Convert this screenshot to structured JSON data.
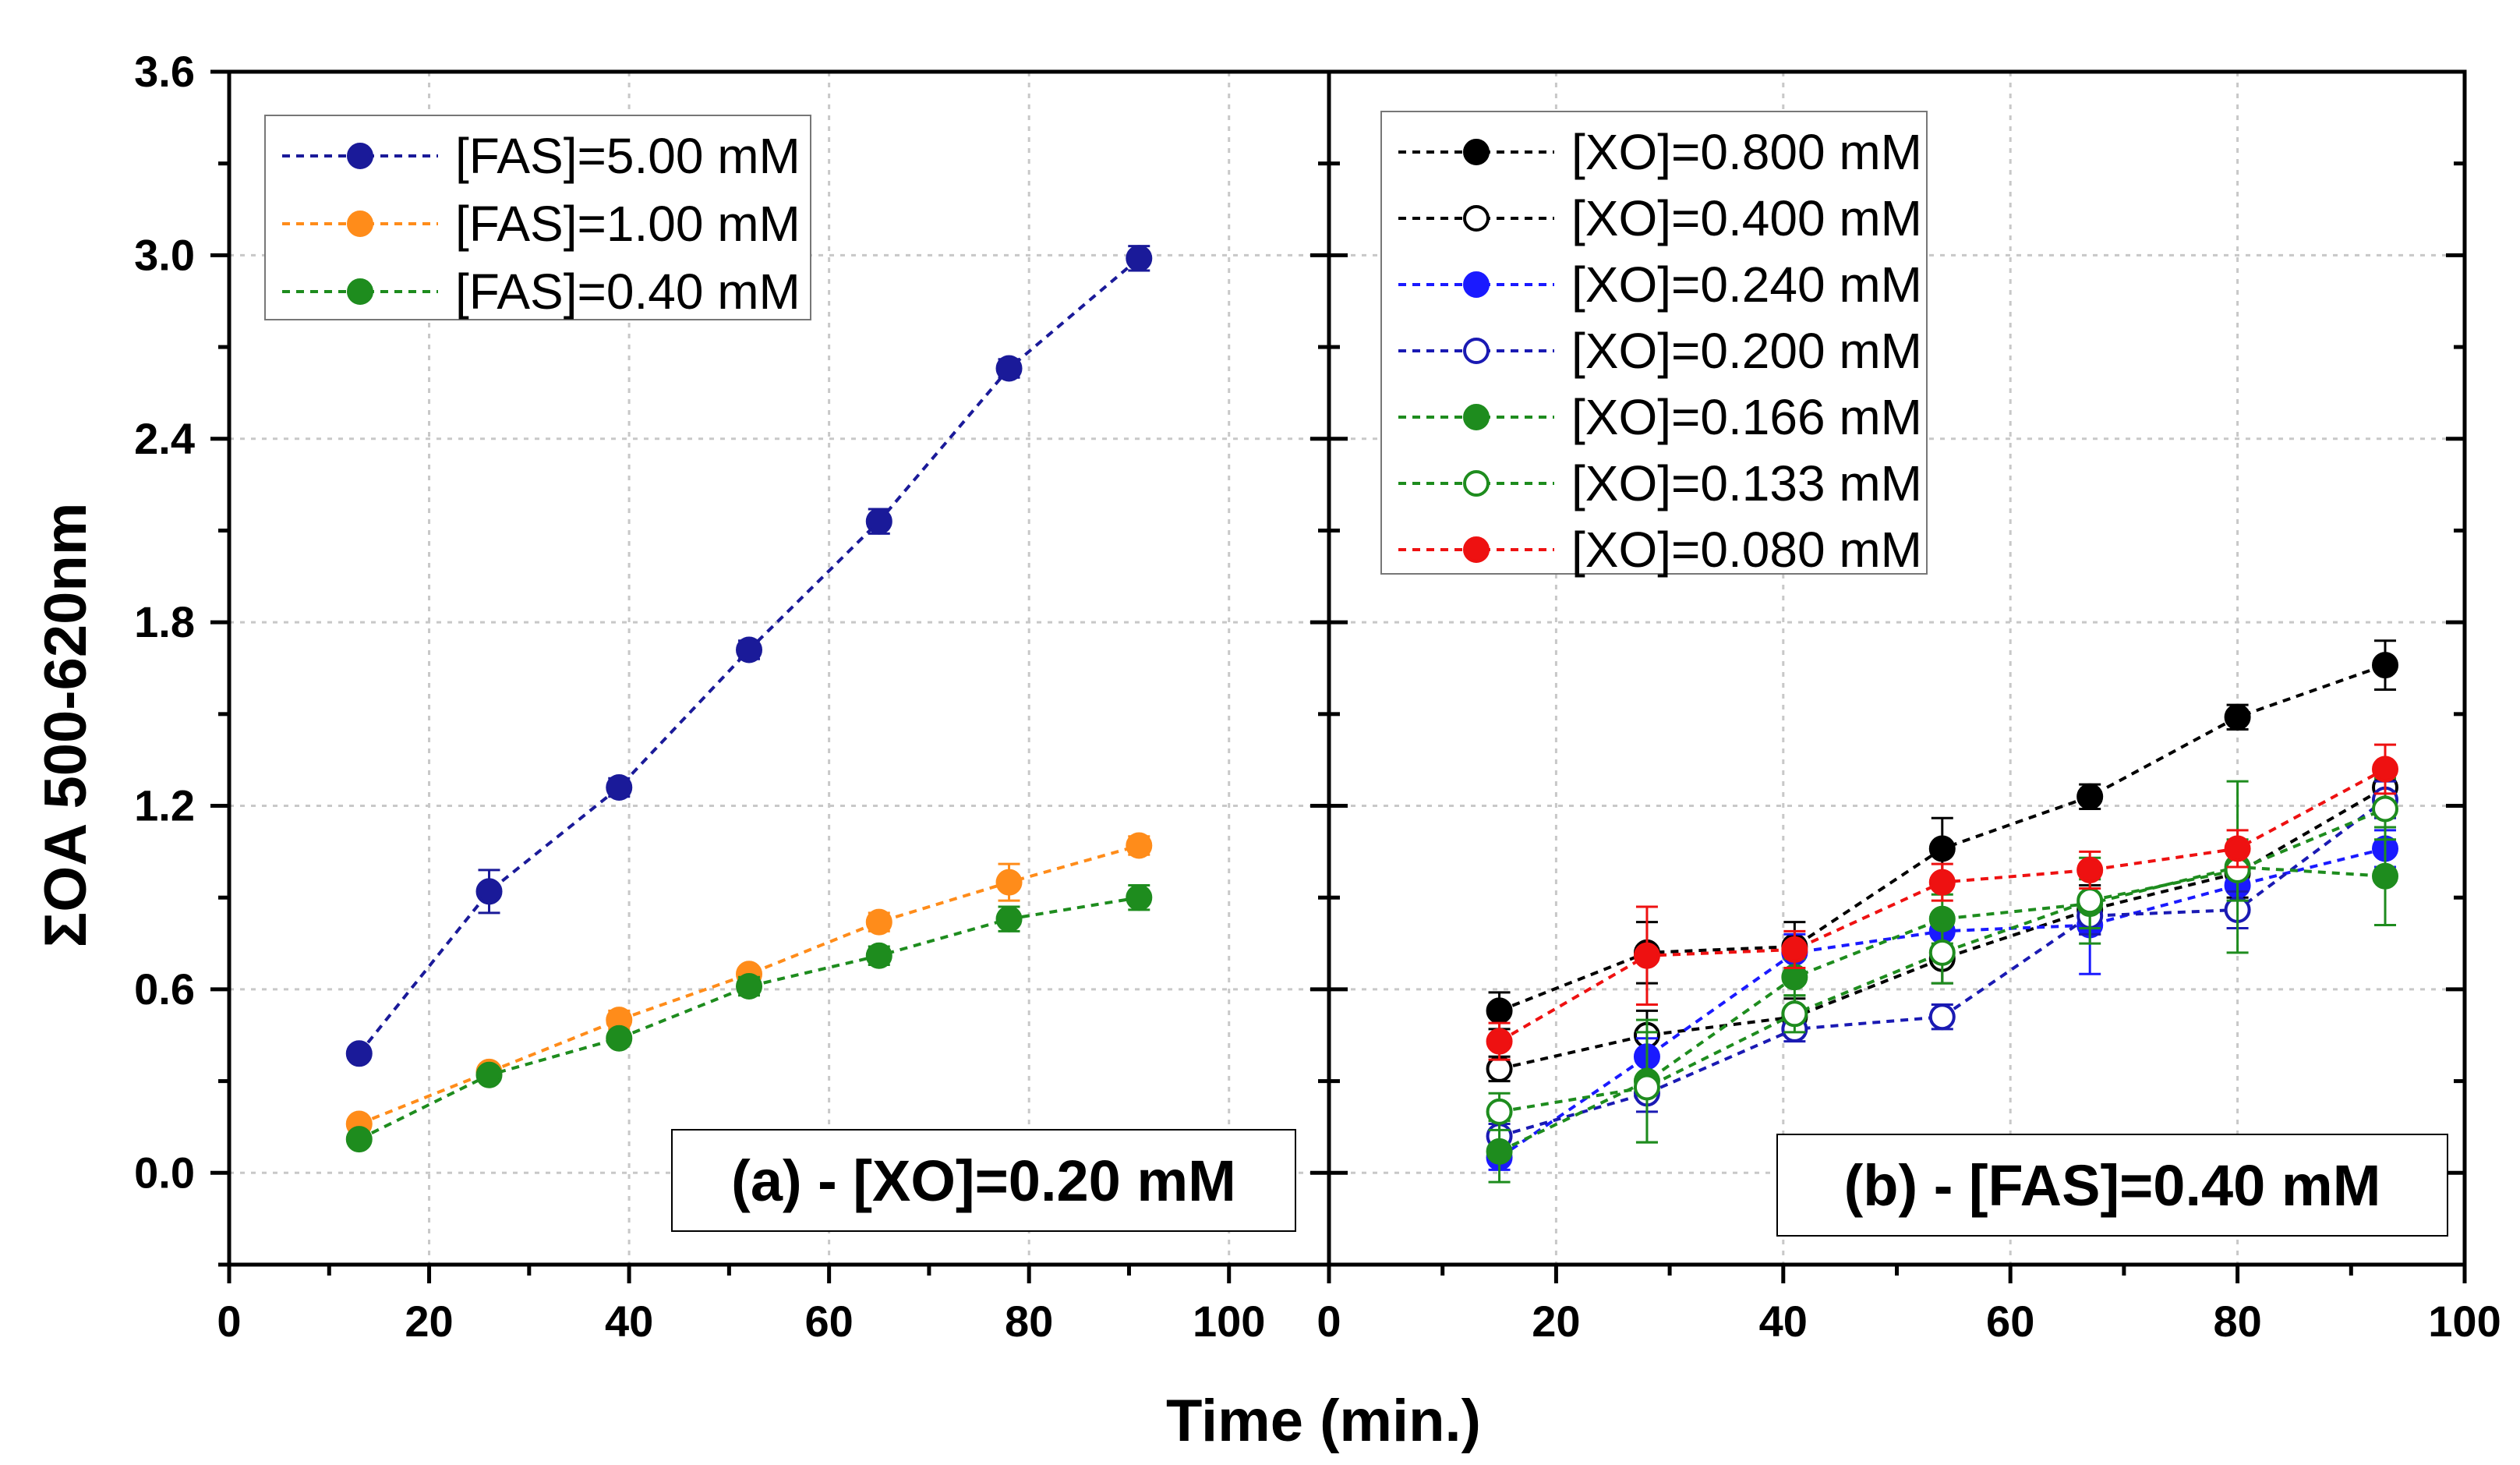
{
  "figure": {
    "ylabel": "ΣOA 500-620nm",
    "xlabel": "Time (min.)"
  },
  "chart_data": [
    {
      "type": "scatter",
      "panel_label": "(a) - [XO]=0.20 mM",
      "xlim": [
        0,
        110
      ],
      "ylim": [
        -0.3,
        3.6
      ],
      "xticks": [
        0,
        20,
        40,
        60,
        80,
        100
      ],
      "yticks": [
        0.0,
        0.6,
        1.2,
        1.8,
        2.4,
        3.0,
        3.6
      ],
      "ytick_labels": [
        "0.0",
        "0.6",
        "1.2",
        "1.8",
        "2.4",
        "3.0",
        "3.6"
      ],
      "xtick_labels": [
        "0",
        "20",
        "40",
        "60",
        "80",
        "100"
      ],
      "grid": true,
      "legend_position": "top-left",
      "x": [
        13,
        26,
        39,
        52,
        65,
        78,
        91
      ],
      "series": [
        {
          "name": "[FAS]=5.00 mM",
          "color": "#1a1a99",
          "filled": true,
          "values": [
            0.39,
            0.92,
            1.26,
            1.71,
            2.13,
            2.63,
            2.99
          ],
          "errors": [
            0.02,
            0.07,
            0.03,
            0.03,
            0.04,
            0.03,
            0.04
          ]
        },
        {
          "name": "[FAS]=1.00 mM",
          "color": "#ff8c1a",
          "filled": true,
          "values": [
            0.16,
            0.33,
            0.5,
            0.65,
            0.82,
            0.95,
            1.07
          ],
          "errors": [
            0.02,
            0.02,
            0.03,
            0.02,
            0.03,
            0.06,
            0.03
          ]
        },
        {
          "name": "[FAS]=0.40 mM",
          "color": "#1e8c1e",
          "filled": true,
          "values": [
            0.11,
            0.32,
            0.44,
            0.61,
            0.71,
            0.83,
            0.9
          ],
          "errors": [
            0.02,
            0.02,
            0.02,
            0.03,
            0.03,
            0.04,
            0.04
          ]
        }
      ]
    },
    {
      "type": "scatter",
      "panel_label": "(b) - [FAS]=0.40 mM",
      "xlim": [
        0,
        100
      ],
      "ylim": [
        -0.3,
        3.6
      ],
      "xticks": [
        0,
        20,
        40,
        60,
        80,
        100
      ],
      "xtick_labels": [
        "0",
        "20",
        "40",
        "60",
        "80",
        "100"
      ],
      "grid": true,
      "legend_position": "top-left",
      "x": [
        15,
        28,
        41,
        54,
        67,
        80,
        93
      ],
      "series": [
        {
          "name": "[XO]=0.800 mM",
          "color": "#000000",
          "filled": true,
          "values": [
            0.53,
            0.72,
            0.74,
            1.06,
            1.23,
            1.49,
            1.66
          ],
          "errors": [
            0.06,
            0.1,
            0.08,
            0.1,
            0.04,
            0.04,
            0.08
          ]
        },
        {
          "name": "[XO]=0.400 mM",
          "color": "#000000",
          "filled": false,
          "values": [
            0.34,
            0.45,
            0.51,
            0.7,
            0.86,
            0.98,
            1.26
          ],
          "errors": [
            0.04,
            0.08,
            0.06,
            0.08,
            0.08,
            0.08,
            0.08
          ]
        },
        {
          "name": "[XO]=0.240 mM",
          "color": "#1a1aff",
          "filled": true,
          "values": [
            0.05,
            0.38,
            0.72,
            0.79,
            0.81,
            0.94,
            1.06
          ],
          "errors": [
            0.04,
            0.06,
            0.06,
            0.06,
            0.16,
            0.08,
            0.06
          ]
        },
        {
          "name": "[XO]=0.200 mM",
          "color": "#1a1ab3",
          "filled": false,
          "values": [
            0.12,
            0.26,
            0.47,
            0.51,
            0.84,
            0.86,
            1.22
          ],
          "errors": [
            0.04,
            0.06,
            0.04,
            0.04,
            0.06,
            0.06,
            0.06
          ]
        },
        {
          "name": "[XO]=0.166 mM",
          "color": "#1e8c1e",
          "filled": true,
          "values": [
            0.07,
            0.3,
            0.64,
            0.83,
            0.88,
            1.0,
            0.97
          ],
          "errors": [
            0.1,
            0.2,
            0.06,
            0.08,
            0.08,
            0.28,
            0.16
          ]
        },
        {
          "name": "[XO]=0.133 mM",
          "color": "#1e8c1e",
          "filled": false,
          "values": [
            0.2,
            0.28,
            0.52,
            0.72,
            0.89,
            0.99,
            1.19
          ],
          "errors": [
            0.06,
            0.18,
            0.06,
            0.1,
            0.14,
            0.1,
            0.1
          ]
        },
        {
          "name": "[XO]=0.080 mM",
          "color": "#ee1111",
          "filled": true,
          "values": [
            0.43,
            0.71,
            0.73,
            0.95,
            0.99,
            1.06,
            1.32
          ],
          "errors": [
            0.06,
            0.16,
            0.06,
            0.06,
            0.06,
            0.06,
            0.08
          ]
        }
      ]
    }
  ]
}
